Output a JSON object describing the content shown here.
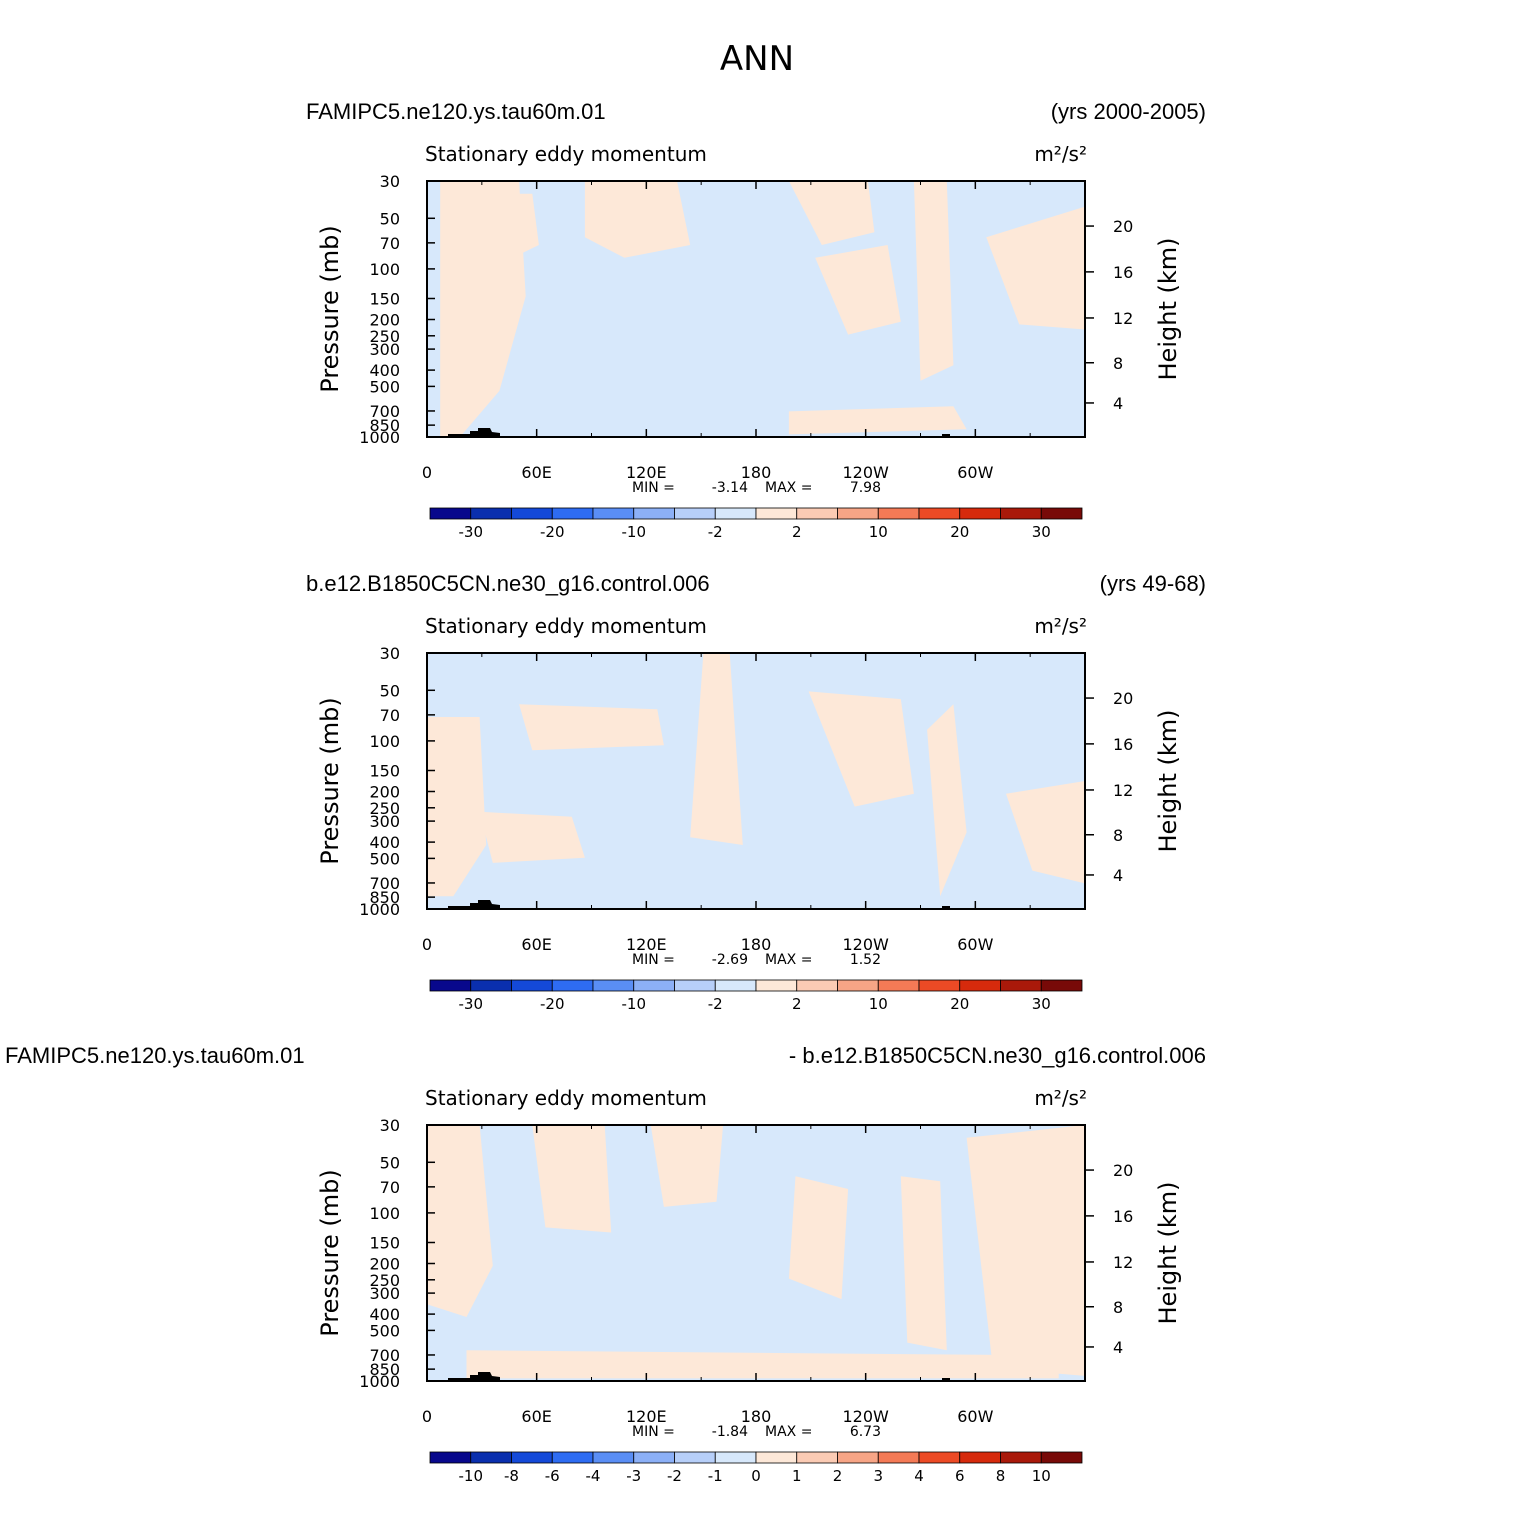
{
  "figure": {
    "title": "ANN"
  },
  "colors": {
    "positive_fill": "#fde8d8",
    "negative_fill": "#d7e8fb",
    "terrain": "#000000",
    "colorbar": [
      "#08088c",
      "#0a2fae",
      "#1449d8",
      "#2e6cf2",
      "#5a8ef5",
      "#8cb0f7",
      "#b7cff9",
      "#d7e8fb",
      "#fde8d8",
      "#fbcbb4",
      "#f7a586",
      "#f47a56",
      "#ec4a25",
      "#d62a0c",
      "#a9190a",
      "#780a08"
    ]
  },
  "chart_data": [
    {
      "type": "heatmap",
      "panel": "panel-1",
      "left_label": "FAMIPC5.ne120.ys.tau60m.01",
      "right_label": "(yrs 2000-2005)",
      "variable": "Stationary eddy momentum",
      "units": "m²/s²",
      "xlabel": "",
      "ylabel": "Pressure (mb)",
      "ylabel_right": "Height (km)",
      "x_ticks": [
        "0",
        "60E",
        "120E",
        "180",
        "120W",
        "60W"
      ],
      "y_ticks": [
        "30",
        "50",
        "70",
        "100",
        "150",
        "200",
        "250",
        "300",
        "400",
        "500",
        "700",
        "850",
        "1000"
      ],
      "y_ticks_right": [
        "20",
        "16",
        "12",
        "8",
        "4"
      ],
      "min_label": "MIN =",
      "min": "-3.14",
      "max_label": "MAX =",
      "max": "7.98",
      "colorbar_labels": [
        "-30",
        "-20",
        "-10",
        "-2",
        "2",
        "10",
        "20",
        "30"
      ]
    },
    {
      "type": "heatmap",
      "panel": "panel-2",
      "left_label": "b.e12.B1850C5CN.ne30_g16.control.006",
      "right_label": "(yrs 49-68)",
      "variable": "Stationary eddy momentum",
      "units": "m²/s²",
      "xlabel": "",
      "ylabel": "Pressure (mb)",
      "ylabel_right": "Height (km)",
      "x_ticks": [
        "0",
        "60E",
        "120E",
        "180",
        "120W",
        "60W"
      ],
      "y_ticks": [
        "30",
        "50",
        "70",
        "100",
        "150",
        "200",
        "250",
        "300",
        "400",
        "500",
        "700",
        "850",
        "1000"
      ],
      "y_ticks_right": [
        "20",
        "16",
        "12",
        "8",
        "4"
      ],
      "min_label": "MIN =",
      "min": "-2.69",
      "max_label": "MAX =",
      "max": "1.52",
      "colorbar_labels": [
        "-30",
        "-20",
        "-10",
        "-2",
        "2",
        "10",
        "20",
        "30"
      ]
    },
    {
      "type": "heatmap",
      "panel": "panel-3",
      "left_label": "FAMIPC5.ne120.ys.tau60m.01",
      "right_label": "- b.e12.B1850C5CN.ne30_g16.control.006",
      "variable": "Stationary eddy momentum",
      "units": "m²/s²",
      "xlabel": "",
      "ylabel": "Pressure (mb)",
      "ylabel_right": "Height (km)",
      "x_ticks": [
        "0",
        "60E",
        "120E",
        "180",
        "120W",
        "60W"
      ],
      "y_ticks": [
        "30",
        "50",
        "70",
        "100",
        "150",
        "200",
        "250",
        "300",
        "400",
        "500",
        "700",
        "850",
        "1000"
      ],
      "y_ticks_right": [
        "20",
        "16",
        "12",
        "8",
        "4"
      ],
      "min_label": "MIN =",
      "min": "-1.84",
      "max_label": "MAX =",
      "max": "6.73",
      "colorbar_labels": [
        "-10",
        "-8",
        "-6",
        "-4",
        "-3",
        "-2",
        "-1",
        "0",
        "1",
        "2",
        "3",
        "4",
        "6",
        "8",
        "10"
      ]
    }
  ]
}
